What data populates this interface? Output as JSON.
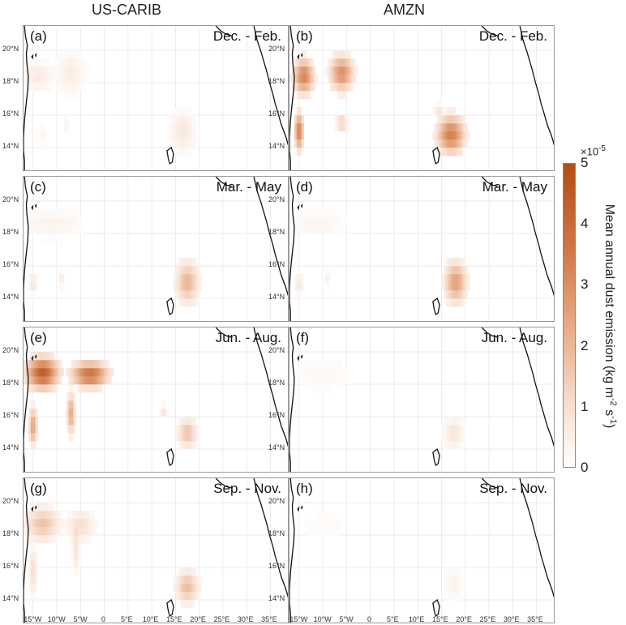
{
  "columns": [
    "US-CARIB",
    "AMZN"
  ],
  "panels": [
    {
      "label": "(a)",
      "season": "Dec. - Feb.",
      "col": 0,
      "row": 0
    },
    {
      "label": "(b)",
      "season": "Dec. - Feb.",
      "col": 1,
      "row": 0
    },
    {
      "label": "(c)",
      "season": "Mar. - May",
      "col": 0,
      "row": 1
    },
    {
      "label": "(d)",
      "season": "Mar. - May",
      "col": 1,
      "row": 1
    },
    {
      "label": "(e)",
      "season": "Jun.  - Aug.",
      "col": 0,
      "row": 2
    },
    {
      "label": "(f)",
      "season": "Jun.  - Aug.",
      "col": 1,
      "row": 2
    },
    {
      "label": "(g)",
      "season": "Sep. - Nov.",
      "col": 0,
      "row": 3
    },
    {
      "label": "(h)",
      "season": "Sep. - Nov.",
      "col": 1,
      "row": 3
    }
  ],
  "lat_ticks": [
    "20°N",
    "18°N",
    "16°N",
    "14°N"
  ],
  "lon_ticks": [
    "15°W",
    "10°W",
    "5°W",
    "0",
    "5°E",
    "10°E",
    "15°E",
    "20°E",
    "25°E",
    "30°E",
    "35°E"
  ],
  "colorbar": {
    "exponent_text": "×10",
    "exponent_power": "-5",
    "ticks": [
      "5",
      "4",
      "3",
      "2",
      "1",
      "0"
    ],
    "label_main": "Mean annual dust emission (kg m",
    "label_sup1": "-2",
    "label_mid": " s",
    "label_sup2": "-1",
    "label_end": ")",
    "min": 0,
    "max": 5,
    "colors": [
      "#ffffff",
      "#f7dfd0",
      "#e8ad89",
      "#d27a4a",
      "#b24c14"
    ]
  },
  "map_extent": {
    "lon": [
      -17,
      39
    ],
    "lat": [
      12.5,
      21.5
    ]
  },
  "emission_blobs": {
    "a": [
      [
        -14,
        18.4,
        3,
        0.9,
        0.8
      ],
      [
        -7,
        18.6,
        3,
        1.2,
        0.7
      ],
      [
        -13,
        14.8,
        1,
        0.6,
        0.4
      ],
      [
        -8,
        15.4,
        0.6,
        0.6,
        0.5
      ],
      [
        16.5,
        15,
        2.6,
        1.2,
        0.9
      ]
    ],
    "b": [
      [
        -14,
        18.4,
        2.2,
        1.1,
        3.5
      ],
      [
        -6,
        18.6,
        2.6,
        1.1,
        3.2
      ],
      [
        -15,
        15.0,
        1.0,
        1.2,
        3.6
      ],
      [
        -6,
        15.5,
        1.2,
        0.6,
        1.6
      ],
      [
        17,
        14.8,
        3,
        1.2,
        3.6
      ],
      [
        14.5,
        16.3,
        1,
        0.4,
        1.0
      ]
    ],
    "c": [
      [
        -11,
        18.6,
        6,
        0.8,
        0.5
      ],
      [
        -15,
        14.9,
        0.9,
        0.6,
        1.0
      ],
      [
        -9,
        15.2,
        0.5,
        0.5,
        0.8
      ],
      [
        17.5,
        15,
        2.4,
        1.3,
        2.3
      ]
    ],
    "d": [
      [
        -11,
        18.6,
        6,
        0.8,
        0.4
      ],
      [
        -15,
        14.9,
        0.9,
        0.6,
        0.9
      ],
      [
        -9,
        15.2,
        0.5,
        0.5,
        0.6
      ],
      [
        18,
        15,
        2.4,
        1.3,
        2.8
      ]
    ],
    "e": [
      [
        -13,
        18.7,
        3.5,
        1.0,
        4.5
      ],
      [
        -3,
        18.6,
        4,
        0.8,
        4.0
      ],
      [
        -15,
        15.4,
        0.9,
        1.2,
        2.8
      ],
      [
        -7,
        16.2,
        0.9,
        1.3,
        2.6
      ],
      [
        17.5,
        15,
        2,
        0.9,
        2.0
      ],
      [
        12.5,
        16.3,
        0.7,
        0.4,
        1.0
      ]
    ],
    "f": [
      [
        -10,
        18.6,
        6,
        1.0,
        0.3
      ],
      [
        17.5,
        15,
        2,
        0.9,
        1.0
      ]
    ],
    "g": [
      [
        -13,
        18.7,
        3.5,
        1.0,
        2.0
      ],
      [
        -5,
        18.6,
        3,
        0.9,
        1.2
      ],
      [
        -15,
        15.8,
        0.8,
        1.4,
        1.3
      ],
      [
        -6,
        17,
        0.7,
        1.2,
        1.1
      ],
      [
        17.5,
        14.8,
        2.4,
        1.0,
        2.1
      ]
    ],
    "h": [
      [
        -10,
        18.6,
        6,
        1.0,
        0.2
      ],
      [
        17.5,
        15,
        2,
        0.9,
        0.5
      ]
    ]
  }
}
